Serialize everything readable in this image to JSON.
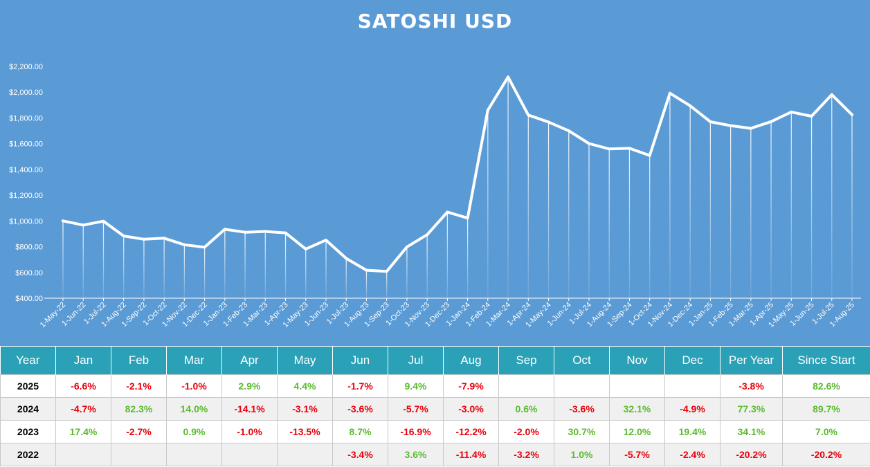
{
  "chart_data": {
    "type": "line",
    "title": "SATOSHI USD",
    "x": [
      "1-May-22",
      "1-Jun-22",
      "1-Jul-22",
      "1-Aug-22",
      "1-Sep-22",
      "1-Oct-22",
      "1-Nov-22",
      "1-Dec-22",
      "1-Jan-23",
      "1-Feb-23",
      "1-Mar-23",
      "1-Apr-23",
      "1-May-23",
      "1-Jun-23",
      "1-Jul-23",
      "1-Aug-23",
      "1-Sep-23",
      "1-Oct-23",
      "1-Nov-23",
      "1-Dec-23",
      "1-Jan-24",
      "1-Feb-24",
      "1-Mar-24",
      "1-Apr-24",
      "1-May-24",
      "1-Jun-24",
      "1-Jul-24",
      "1-Aug-24",
      "1-Sep-24",
      "1-Oct-24",
      "1-Nov-24",
      "1-Dec-24",
      "1-Jan-25",
      "1-Feb-25",
      "1-Mar-25",
      "1-Apr-25",
      "1-May-25",
      "1-Jun-25",
      "1-Jul-25",
      "1-Aug-25"
    ],
    "series": [
      {
        "values": [
          1000,
          968,
          998,
          883,
          858,
          866,
          815,
          796,
          935,
          912,
          918,
          907,
          782,
          851,
          709,
          617,
          608,
          798,
          893,
          1069,
          1022,
          1860,
          2118,
          1822,
          1768,
          1700,
          1601,
          1559,
          1564,
          1508,
          1992,
          1894,
          1770,
          1740,
          1719,
          1771,
          1846,
          1813,
          1981,
          1825
        ]
      }
    ],
    "yticks": [
      "$400.00",
      "$600.00",
      "$800.00",
      "$1,000.00",
      "$1,200.00",
      "$1,400.00",
      "$1,600.00",
      "$1,800.00",
      "$2,000.00",
      "$2,200.00"
    ],
    "ylim": [
      400,
      2200
    ],
    "line_color": "#ffffff",
    "background_color": "#5b9bd5",
    "grid": false,
    "drop_lines": true
  },
  "table": {
    "headers": [
      "Year",
      "Jan",
      "Feb",
      "Mar",
      "Apr",
      "May",
      "Jun",
      "Jul",
      "Aug",
      "Sep",
      "Oct",
      "Nov",
      "Dec",
      "Per Year",
      "Since Start"
    ],
    "rows": [
      [
        "2025",
        "-6.6%",
        "-2.1%",
        "-1.0%",
        "2.9%",
        "4.4%",
        "-1.7%",
        "9.4%",
        "-7.9%",
        "",
        "",
        "",
        "",
        "-3.8%",
        "82.6%"
      ],
      [
        "2024",
        "-4.7%",
        "82.3%",
        "14.0%",
        "-14.1%",
        "-3.1%",
        "-3.6%",
        "-5.7%",
        "-3.0%",
        "0.6%",
        "-3.6%",
        "32.1%",
        "-4.9%",
        "77.3%",
        "89.7%"
      ],
      [
        "2023",
        "17.4%",
        "-2.7%",
        "0.9%",
        "-1.0%",
        "-13.5%",
        "8.7%",
        "-16.9%",
        "-12.2%",
        "-2.0%",
        "30.7%",
        "12.0%",
        "19.4%",
        "34.1%",
        "7.0%"
      ],
      [
        "2022",
        "",
        "",
        "",
        "",
        "",
        "-3.4%",
        "3.6%",
        "-11.4%",
        "-3.2%",
        "1.0%",
        "-5.7%",
        "-2.4%",
        "-20.2%",
        "-20.2%"
      ]
    ],
    "header_color": "#2aa1b7",
    "positive_color": "#5aba2e",
    "negative_color": "#e8000b"
  }
}
